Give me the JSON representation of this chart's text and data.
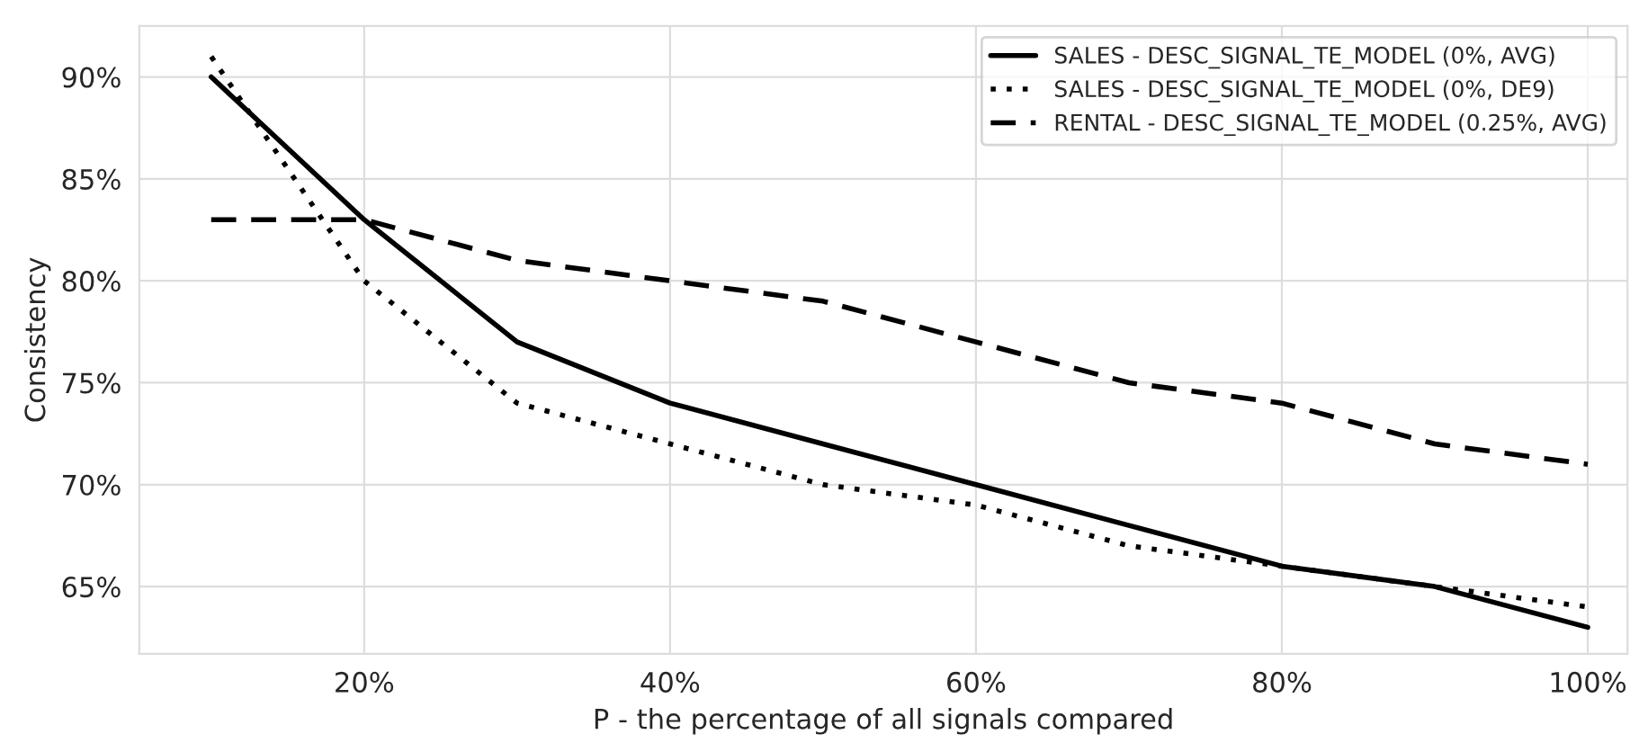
{
  "chart_data": {
    "type": "line",
    "xlabel": "P - the percentage of all signals compared",
    "ylabel": "Consistency",
    "x": [
      10,
      20,
      30,
      40,
      50,
      60,
      70,
      80,
      90,
      100
    ],
    "series": [
      {
        "name": "SALES - DESC_SIGNAL_TE_MODEL (0%, AVG)",
        "color": "#000000",
        "line_style": "solid",
        "values": [
          90,
          83,
          77,
          74,
          72,
          70,
          68,
          66,
          65,
          63
        ]
      },
      {
        "name": "SALES - DESC_SIGNAL_TE_MODEL (0%, DE9)",
        "color": "#000000",
        "line_style": "dotted",
        "values": [
          91,
          80,
          74,
          72,
          70,
          69,
          67,
          66,
          65,
          64
        ]
      },
      {
        "name": "RENTAL - DESC_SIGNAL_TE_MODEL (0.25%, AVG)",
        "color": "#000000",
        "line_style": "dashed",
        "values": [
          83,
          83,
          81,
          80,
          79,
          77,
          75,
          74,
          72,
          71
        ]
      }
    ],
    "xlim": [
      5.3,
      102.6
    ],
    "ylim": [
      61.7,
      92.5
    ],
    "xticks": [
      {
        "value": 20,
        "label": "20%"
      },
      {
        "value": 40,
        "label": "40%"
      },
      {
        "value": 60,
        "label": "60%"
      },
      {
        "value": 80,
        "label": "80%"
      },
      {
        "value": 100,
        "label": "100%"
      }
    ],
    "yticks": [
      {
        "value": 65,
        "label": "65%"
      },
      {
        "value": 70,
        "label": "70%"
      },
      {
        "value": 75,
        "label": "75%"
      },
      {
        "value": 80,
        "label": "80%"
      },
      {
        "value": 85,
        "label": "85%"
      },
      {
        "value": 90,
        "label": "90%"
      }
    ],
    "grid": true,
    "legend": "top right"
  }
}
